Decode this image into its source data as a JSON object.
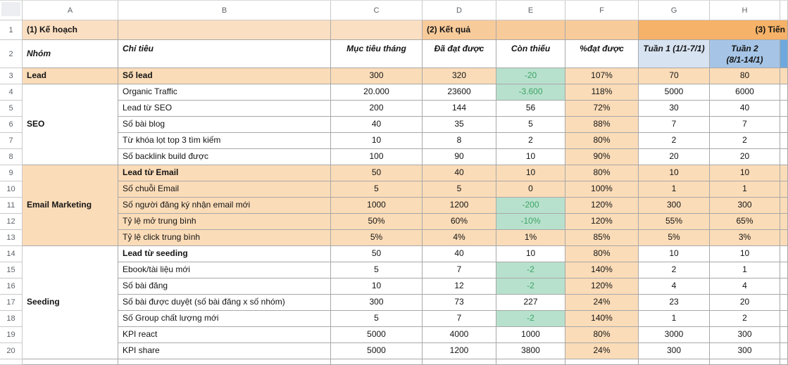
{
  "colors": {
    "band_light_orange": "#fbdfc2",
    "band_medium_orange": "#f8cb9b",
    "band_dark_orange": "#f5b268",
    "row_orange": "#fbdcb8",
    "green_bg": "#b7e1cd",
    "green_text": "#3ea365",
    "week1_blue": "#d7e3f1",
    "week2_blue": "#a6c5e6",
    "week3_blue": "#6fa8dc"
  },
  "sheet": {
    "column_letters": [
      "A",
      "B",
      "C",
      "D",
      "E",
      "F",
      "G",
      "H",
      ""
    ],
    "row_numbers": [
      1,
      2,
      3,
      4,
      5,
      6,
      7,
      8,
      9,
      10,
      11,
      12,
      13,
      14,
      15,
      16,
      17,
      18,
      19,
      20
    ],
    "banner": {
      "plan": "(1) Kế hoạch",
      "result": "(2) Kết quả",
      "progress": "(3) Tiến"
    },
    "headers": {
      "group": "Nhóm",
      "criteria": "Chỉ tiêu",
      "target": "Mục tiêu tháng",
      "achieved": "Đã đạt được",
      "remaining": "Còn thiếu",
      "percent": "%đạt được",
      "week1": "Tuần 1 (1/1-7/1)",
      "week2_line1": "Tuần 2",
      "week2_line2": "(8/1-14/1)"
    },
    "rows": [
      {
        "n": 3,
        "group": "Lead",
        "group_rows": 1,
        "group_bg": "orange",
        "bg": "orange",
        "bold": true,
        "criteria": "Số lead",
        "target": "300",
        "achieved": "320",
        "remaining": "-20",
        "remaining_green": true,
        "percent": "107%",
        "week1": "70",
        "week2": "80"
      },
      {
        "n": 4,
        "group": "SEO",
        "group_rows": 5,
        "group_bg": "white",
        "bg": "white",
        "criteria": "Organic Traffic",
        "target": "20.000",
        "achieved": "23600",
        "remaining": "-3.600",
        "remaining_green": true,
        "percent": "118%",
        "week1": "5000",
        "week2": "6000"
      },
      {
        "n": 5,
        "bg": "white",
        "criteria": "Lead từ SEO",
        "target": "200",
        "achieved": "144",
        "remaining": "56",
        "percent": "72%",
        "week1": "30",
        "week2": "40"
      },
      {
        "n": 6,
        "bg": "white",
        "criteria": "Số bài blog",
        "target": "40",
        "achieved": "35",
        "remaining": "5",
        "percent": "88%",
        "week1": "7",
        "week2": "7"
      },
      {
        "n": 7,
        "bg": "white",
        "criteria": "Từ khóa lọt top 3 tìm kiếm",
        "target": "10",
        "achieved": "8",
        "remaining": "2",
        "percent": "80%",
        "week1": "2",
        "week2": "2"
      },
      {
        "n": 8,
        "bg": "white",
        "criteria": "Số backlink build được",
        "target": "100",
        "achieved": "90",
        "remaining": "10",
        "percent": "90%",
        "week1": "20",
        "week2": "20"
      },
      {
        "n": 9,
        "group": "Email Marketing",
        "group_rows": 5,
        "group_bg": "orange",
        "bg": "orange",
        "bold": true,
        "criteria": "Lead từ Email",
        "target": "50",
        "achieved": "40",
        "remaining": "10",
        "percent": "80%",
        "week1": "10",
        "week2": "10"
      },
      {
        "n": 10,
        "bg": "orange",
        "criteria": "Số chuỗi Email",
        "target": "5",
        "achieved": "5",
        "remaining": "0",
        "percent": "100%",
        "week1": "1",
        "week2": "1"
      },
      {
        "n": 11,
        "bg": "orange",
        "criteria": "Số người đăng ký nhận email mới",
        "target": "1000",
        "achieved": "1200",
        "remaining": "-200",
        "remaining_green": true,
        "percent": "120%",
        "week1": "300",
        "week2": "300"
      },
      {
        "n": 12,
        "bg": "orange",
        "criteria": "Tỷ lệ mở trung bình",
        "target": "50%",
        "achieved": "60%",
        "remaining": "-10%",
        "remaining_green": true,
        "percent": "120%",
        "week1": "55%",
        "week2": "65%"
      },
      {
        "n": 13,
        "bg": "orange",
        "criteria": "Tỷ lệ click trung bình",
        "target": "5%",
        "achieved": "4%",
        "remaining": "1%",
        "percent": "85%",
        "week1": "5%",
        "week2": "3%"
      },
      {
        "n": 14,
        "group": "Seeding",
        "group_rows": 7,
        "group_bg": "white",
        "bg": "white",
        "bold": true,
        "criteria": "Lead từ seeding",
        "target": "50",
        "achieved": "40",
        "remaining": "10",
        "percent": "80%",
        "week1": "10",
        "week2": "10"
      },
      {
        "n": 15,
        "bg": "white",
        "criteria": "Ebook/tài liệu mới",
        "target": "5",
        "achieved": "7",
        "remaining": "-2",
        "remaining_green": true,
        "percent": "140%",
        "week1": "2",
        "week2": "1"
      },
      {
        "n": 16,
        "bg": "white",
        "criteria": "Số bài đăng",
        "target": "10",
        "achieved": "12",
        "remaining": "-2",
        "remaining_green": true,
        "percent": "120%",
        "week1": "4",
        "week2": "4"
      },
      {
        "n": 17,
        "bg": "white",
        "criteria": "Số bài được duyệt (số bài đăng x số nhóm)",
        "target": "300",
        "achieved": "73",
        "remaining": "227",
        "percent": "24%",
        "week1": "23",
        "week2": "20"
      },
      {
        "n": 18,
        "bg": "white",
        "criteria": "Số Group chất lượng mới",
        "target": "5",
        "achieved": "7",
        "remaining": "-2",
        "remaining_green": true,
        "percent": "140%",
        "week1": "1",
        "week2": "2"
      },
      {
        "n": 19,
        "bg": "white",
        "criteria": "KPI react",
        "target": "5000",
        "achieved": "4000",
        "remaining": "1000",
        "percent": "80%",
        "week1": "3000",
        "week2": "300"
      },
      {
        "n": 20,
        "bg": "white",
        "criteria": "KPI share",
        "target": "5000",
        "achieved": "1200",
        "remaining": "3800",
        "percent": "24%",
        "week1": "300",
        "week2": "300"
      }
    ]
  }
}
